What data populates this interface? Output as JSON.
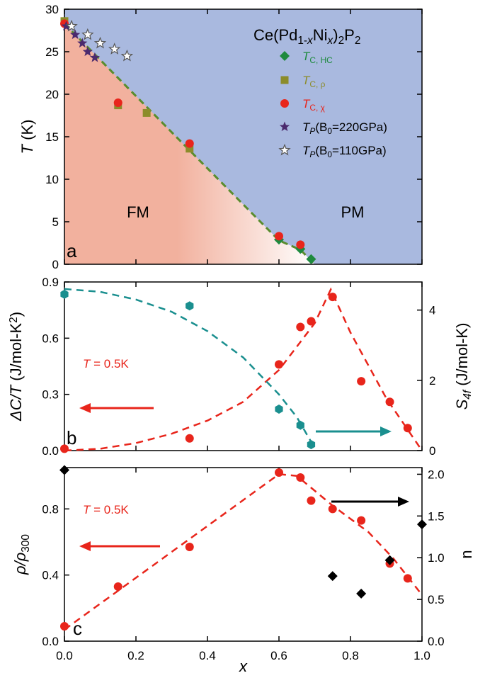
{
  "chart_data": [
    {
      "type": "scatter",
      "panel_letter": "a",
      "title_parts": [
        "Ce(Pd",
        "1-",
        "x",
        "Ni",
        "x",
        ")",
        "2",
        "P",
        "2"
      ],
      "xlim": [
        0,
        1.0
      ],
      "ylim": [
        0,
        30
      ],
      "y_ticks": [
        0,
        5,
        10,
        15,
        20,
        25,
        30
      ],
      "y_tick_labels": [
        "0",
        "5",
        "10",
        "15",
        "20",
        "25",
        "30"
      ],
      "ylabel_parts": [
        "T",
        " (K)"
      ],
      "region_labels": [
        "FM",
        "PM"
      ],
      "colors": {
        "fm": "#f2b19e",
        "pm": "#a9b9df",
        "hc": "#1e8a3e",
        "rho": "#8c8c2a",
        "chi": "#e8251b",
        "star_dark": "#4b2a6e",
        "line": "#5a8c2e"
      },
      "phase_boundary": {
        "x": [
          0,
          0.35,
          0.6,
          0.66,
          0.7
        ],
        "y": [
          28.3,
          13.4,
          2.8,
          1.7,
          0
        ]
      },
      "series": [
        {
          "name": "T_C, HC",
          "legend_parts": [
            "T",
            "C, HC"
          ],
          "marker": "diamond",
          "x": [
            0.6,
            0.66,
            0.69
          ],
          "y": [
            2.9,
            1.8,
            0.6
          ]
        },
        {
          "name": "T_C, ρ",
          "legend_parts": [
            "T",
            "C, ρ"
          ],
          "marker": "square",
          "x": [
            0,
            0.15,
            0.23,
            0.35
          ],
          "y": [
            28.6,
            18.7,
            17.8,
            13.6
          ]
        },
        {
          "name": "T_C, χ",
          "legend_parts": [
            "T",
            "C, χ"
          ],
          "marker": "circle",
          "x": [
            0,
            0.15,
            0.35,
            0.6,
            0.66
          ],
          "y": [
            28.3,
            19.0,
            14.2,
            3.3,
            2.3
          ]
        },
        {
          "name": "T_P(B0=220GPa)",
          "legend_parts": [
            "T",
            "P",
            "(B",
            "0",
            "=220GPa)"
          ],
          "marker": "star-filled",
          "x": [
            0.005,
            0.03,
            0.05,
            0.065,
            0.085
          ],
          "y": [
            28.0,
            27.0,
            26.0,
            25.0,
            24.3
          ]
        },
        {
          "name": "T_P(B0=110GPa)",
          "legend_parts": [
            "T",
            "P",
            "(B",
            "0",
            "=110GPa)"
          ],
          "marker": "star-open",
          "x": [
            0.02,
            0.065,
            0.1,
            0.14,
            0.175
          ],
          "y": [
            28.0,
            27.0,
            26.0,
            25.3,
            24.5
          ]
        }
      ]
    },
    {
      "type": "scatter",
      "panel_letter": "b",
      "annotation_parts": [
        "T",
        " = 0.5K"
      ],
      "xlim": [
        0,
        1.0
      ],
      "ylim": [
        0,
        0.9
      ],
      "y2lim": [
        0,
        4.8
      ],
      "y_ticks": [
        0.0,
        0.3,
        0.6,
        0.9
      ],
      "y_tick_labels": [
        "0.0",
        "0.3",
        "0.6",
        "0.9"
      ],
      "y2_ticks": [
        0,
        2,
        4
      ],
      "y2_tick_labels": [
        "0",
        "2",
        "4"
      ],
      "ylabel_parts": [
        "ΔC/T",
        "  (J/mol-K",
        "2",
        ")"
      ],
      "y2label_parts": [
        "S",
        "4f",
        " (J/mol-K)"
      ],
      "colors": {
        "red": "#e8251b",
        "teal": "#1a8f8f"
      },
      "series": [
        {
          "name": "ΔC/T",
          "axis": "left",
          "marker": "circle",
          "x": [
            0,
            0.35,
            0.6,
            0.66,
            0.69,
            0.75,
            0.83,
            0.91,
            0.96
          ],
          "y": [
            0.01,
            0.065,
            0.46,
            0.66,
            0.69,
            0.82,
            0.37,
            0.26,
            0.12
          ]
        },
        {
          "name": "S4f",
          "axis": "right",
          "marker": "hexagon",
          "x": [
            0,
            0.35,
            0.6,
            0.66,
            0.69
          ],
          "y": [
            4.45,
            4.12,
            1.18,
            0.72,
            0.17
          ]
        }
      ],
      "fits": [
        {
          "axis": "left",
          "color": "red",
          "x": [
            0,
            0.1,
            0.2,
            0.3,
            0.4,
            0.5,
            0.6,
            0.7,
            0.745,
            0.8,
            0.9,
            1.0
          ],
          "y": [
            0.0,
            0.01,
            0.04,
            0.09,
            0.16,
            0.26,
            0.43,
            0.68,
            0.86,
            0.63,
            0.28,
            0.0
          ]
        },
        {
          "axis": "right",
          "color": "teal",
          "x": [
            0,
            0.1,
            0.2,
            0.3,
            0.4,
            0.5,
            0.6,
            0.65,
            0.69
          ],
          "y": [
            4.6,
            4.52,
            4.3,
            3.95,
            3.4,
            2.65,
            1.6,
            0.95,
            0.25
          ]
        }
      ]
    },
    {
      "type": "scatter",
      "panel_letter": "c",
      "annotation_parts": [
        "T",
        " = 0.5K"
      ],
      "xlim": [
        0,
        1.0
      ],
      "ylim": [
        0,
        1.05
      ],
      "y2lim": [
        0,
        2.08
      ],
      "x_ticks": [
        0.0,
        0.2,
        0.4,
        0.6,
        0.8,
        1.0
      ],
      "x_tick_labels": [
        "0.0",
        "0.2",
        "0.4",
        "0.6",
        "0.8",
        "1.0"
      ],
      "y_ticks": [
        0.0,
        0.4,
        0.8
      ],
      "y_tick_labels": [
        "0.0",
        "0.4",
        "0.8"
      ],
      "y2_ticks": [
        0.0,
        0.5,
        1.0,
        1.5,
        2.0
      ],
      "y2_tick_labels": [
        "0.0",
        "0.5",
        "1.0",
        "1.5",
        "2.0"
      ],
      "xlabel": "x",
      "ylabel_parts": [
        "ρ/ρ",
        "300"
      ],
      "y2label": "n",
      "colors": {
        "red": "#e8251b",
        "black": "#000000"
      },
      "series": [
        {
          "name": "ρ/ρ300",
          "axis": "left",
          "marker": "circle",
          "x": [
            0,
            0.15,
            0.35,
            0.6,
            0.66,
            0.69,
            0.75,
            0.83,
            0.91,
            0.96
          ],
          "y": [
            0.09,
            0.33,
            0.57,
            1.02,
            0.99,
            0.85,
            0.8,
            0.73,
            0.47,
            0.38
          ]
        },
        {
          "name": "n",
          "axis": "right",
          "marker": "diamond",
          "x": [
            0,
            0.75,
            0.83,
            0.91,
            1.0
          ],
          "y": [
            2.05,
            0.78,
            0.57,
            0.97,
            1.4
          ]
        }
      ],
      "fits": [
        {
          "axis": "left",
          "color": "red",
          "x": [
            0,
            0.6,
            0.65,
            0.75,
            0.85,
            0.92,
            1.0
          ],
          "y": [
            0.07,
            1.01,
            1.0,
            0.82,
            0.66,
            0.5,
            0.28
          ]
        }
      ]
    }
  ]
}
